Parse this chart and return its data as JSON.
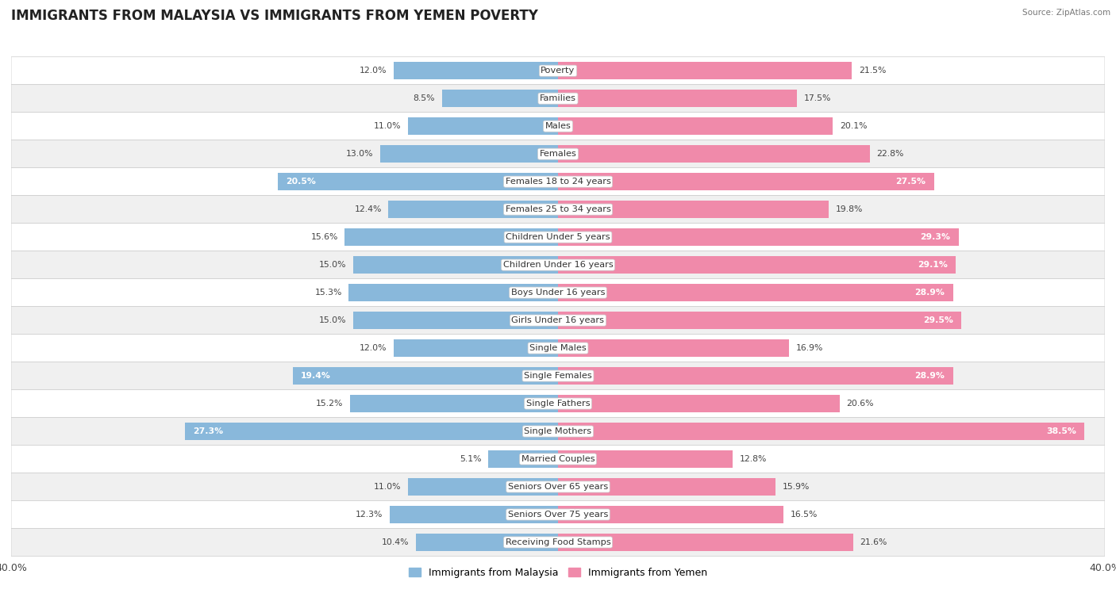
{
  "title": "IMMIGRANTS FROM MALAYSIA VS IMMIGRANTS FROM YEMEN POVERTY",
  "source": "Source: ZipAtlas.com",
  "categories": [
    "Poverty",
    "Families",
    "Males",
    "Females",
    "Females 18 to 24 years",
    "Females 25 to 34 years",
    "Children Under 5 years",
    "Children Under 16 years",
    "Boys Under 16 years",
    "Girls Under 16 years",
    "Single Males",
    "Single Females",
    "Single Fathers",
    "Single Mothers",
    "Married Couples",
    "Seniors Over 65 years",
    "Seniors Over 75 years",
    "Receiving Food Stamps"
  ],
  "malaysia_values": [
    12.0,
    8.5,
    11.0,
    13.0,
    20.5,
    12.4,
    15.6,
    15.0,
    15.3,
    15.0,
    12.0,
    19.4,
    15.2,
    27.3,
    5.1,
    11.0,
    12.3,
    10.4
  ],
  "yemen_values": [
    21.5,
    17.5,
    20.1,
    22.8,
    27.5,
    19.8,
    29.3,
    29.1,
    28.9,
    29.5,
    16.9,
    28.9,
    20.6,
    38.5,
    12.8,
    15.9,
    16.5,
    21.6
  ],
  "malaysia_color": "#89b8db",
  "yemen_color": "#f08aaa",
  "malaysia_label": "Immigrants from Malaysia",
  "yemen_label": "Immigrants from Yemen",
  "xlim": 40.0,
  "bar_height": 0.62,
  "title_fontsize": 12,
  "label_fontsize": 8.2,
  "value_fontsize": 7.8
}
